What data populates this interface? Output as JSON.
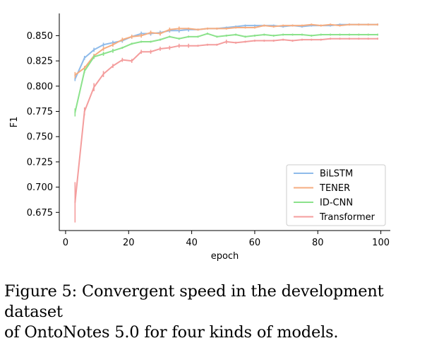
{
  "chart_data": {
    "type": "line",
    "xlabel": "epoch",
    "ylabel": "F1",
    "xlim": [
      -2,
      103
    ],
    "ylim": [
      0.657,
      0.872
    ],
    "x_ticks": [
      0,
      20,
      40,
      60,
      80,
      100
    ],
    "x_tick_labels": [
      "0",
      "20",
      "40",
      "60",
      "80",
      "100"
    ],
    "y_ticks": [
      0.675,
      0.7,
      0.725,
      0.75,
      0.775,
      0.8,
      0.825,
      0.85
    ],
    "y_tick_labels": [
      "0.675",
      "0.700",
      "0.725",
      "0.750",
      "0.775",
      "0.800",
      "0.825",
      "0.850"
    ],
    "legend_position": "lower-right",
    "series": [
      {
        "name": "BiLSTM",
        "color": "#8fbbea",
        "x": [
          3,
          6,
          9,
          12,
          15,
          18,
          21,
          24,
          27,
          30,
          33,
          36,
          39,
          42,
          45,
          48,
          51,
          54,
          57,
          60,
          63,
          66,
          69,
          72,
          75,
          78,
          81,
          84,
          87,
          90,
          93,
          96,
          99
        ],
        "values": [
          0.807,
          0.828,
          0.836,
          0.841,
          0.843,
          0.845,
          0.849,
          0.852,
          0.852,
          0.853,
          0.855,
          0.855,
          0.856,
          0.856,
          0.857,
          0.857,
          0.858,
          0.859,
          0.86,
          0.86,
          0.86,
          0.86,
          0.859,
          0.86,
          0.859,
          0.86,
          0.86,
          0.86,
          0.861,
          0.861,
          0.861,
          0.861,
          0.861
        ],
        "errors": [
          0.002,
          0.002,
          0.002,
          0.002,
          0.002,
          0.002,
          0.002,
          0.002,
          0.002,
          0.002,
          0.002,
          0.002,
          0.002,
          0.001,
          0.001,
          0.001,
          0.001,
          0.001,
          0.001,
          0.001,
          0.001,
          0.001,
          0.001,
          0.001,
          0.001,
          0.001,
          0.001,
          0.001,
          0.001,
          0.001,
          0.001,
          0.001,
          0.001
        ]
      },
      {
        "name": "TENER",
        "color": "#f6ad80",
        "x": [
          3,
          6,
          9,
          12,
          15,
          18,
          21,
          24,
          27,
          30,
          33,
          36,
          39,
          42,
          45,
          48,
          51,
          54,
          57,
          60,
          63,
          66,
          69,
          72,
          75,
          78,
          81,
          84,
          87,
          90,
          93,
          96,
          99
        ],
        "values": [
          0.811,
          0.818,
          0.83,
          0.837,
          0.841,
          0.846,
          0.849,
          0.85,
          0.853,
          0.852,
          0.856,
          0.857,
          0.857,
          0.856,
          0.857,
          0.857,
          0.857,
          0.858,
          0.858,
          0.858,
          0.86,
          0.859,
          0.86,
          0.86,
          0.86,
          0.861,
          0.86,
          0.861,
          0.86,
          0.861,
          0.861,
          0.861,
          0.861
        ],
        "errors": [
          0.003,
          0.002,
          0.002,
          0.002,
          0.002,
          0.002,
          0.002,
          0.002,
          0.002,
          0.002,
          0.002,
          0.002,
          0.001,
          0.001,
          0.001,
          0.001,
          0.001,
          0.001,
          0.001,
          0.001,
          0.001,
          0.001,
          0.001,
          0.001,
          0.001,
          0.001,
          0.001,
          0.001,
          0.001,
          0.001,
          0.001,
          0.001,
          0.001
        ]
      },
      {
        "name": "ID-CNN",
        "color": "#8be28b",
        "x": [
          3,
          6,
          9,
          12,
          15,
          18,
          21,
          24,
          27,
          30,
          33,
          36,
          39,
          42,
          45,
          48,
          51,
          54,
          57,
          60,
          63,
          66,
          69,
          72,
          75,
          78,
          81,
          84,
          87,
          90,
          93,
          96,
          99
        ],
        "values": [
          0.774,
          0.815,
          0.829,
          0.832,
          0.835,
          0.838,
          0.842,
          0.844,
          0.844,
          0.846,
          0.849,
          0.847,
          0.849,
          0.849,
          0.852,
          0.849,
          0.85,
          0.851,
          0.849,
          0.85,
          0.851,
          0.85,
          0.851,
          0.851,
          0.851,
          0.85,
          0.851,
          0.851,
          0.851,
          0.851,
          0.851,
          0.851,
          0.851
        ],
        "errors": [
          0.004,
          0.002,
          0.002,
          0.002,
          0.002,
          0.001,
          0.001,
          0.001,
          0.001,
          0.001,
          0.001,
          0.001,
          0.001,
          0.001,
          0.001,
          0.001,
          0.001,
          0.001,
          0.001,
          0.001,
          0.001,
          0.001,
          0.001,
          0.001,
          0.001,
          0.001,
          0.001,
          0.001,
          0.001,
          0.001,
          0.001,
          0.001,
          0.001
        ]
      },
      {
        "name": "Transformer",
        "color": "#f49d9d",
        "x": [
          3,
          6,
          9,
          12,
          15,
          18,
          21,
          24,
          27,
          30,
          33,
          36,
          39,
          42,
          45,
          48,
          51,
          54,
          57,
          60,
          63,
          66,
          69,
          72,
          75,
          78,
          81,
          84,
          87,
          90,
          93,
          96,
          99
        ],
        "values": [
          0.685,
          0.775,
          0.799,
          0.812,
          0.82,
          0.826,
          0.825,
          0.834,
          0.834,
          0.837,
          0.838,
          0.84,
          0.84,
          0.84,
          0.841,
          0.841,
          0.844,
          0.843,
          0.844,
          0.845,
          0.845,
          0.845,
          0.846,
          0.845,
          0.846,
          0.846,
          0.846,
          0.847,
          0.847,
          0.847,
          0.847,
          0.847,
          0.847
        ],
        "errors": [
          0.02,
          0.004,
          0.004,
          0.003,
          0.002,
          0.002,
          0.002,
          0.002,
          0.002,
          0.002,
          0.002,
          0.002,
          0.002,
          0.001,
          0.001,
          0.001,
          0.002,
          0.001,
          0.001,
          0.001,
          0.001,
          0.001,
          0.001,
          0.001,
          0.001,
          0.001,
          0.001,
          0.001,
          0.001,
          0.001,
          0.001,
          0.001,
          0.001
        ]
      }
    ]
  },
  "caption": {
    "line1": "Figure 5: Convergent speed in the development dataset",
    "line2": "of OntoNotes 5.0 for four kinds of models."
  }
}
